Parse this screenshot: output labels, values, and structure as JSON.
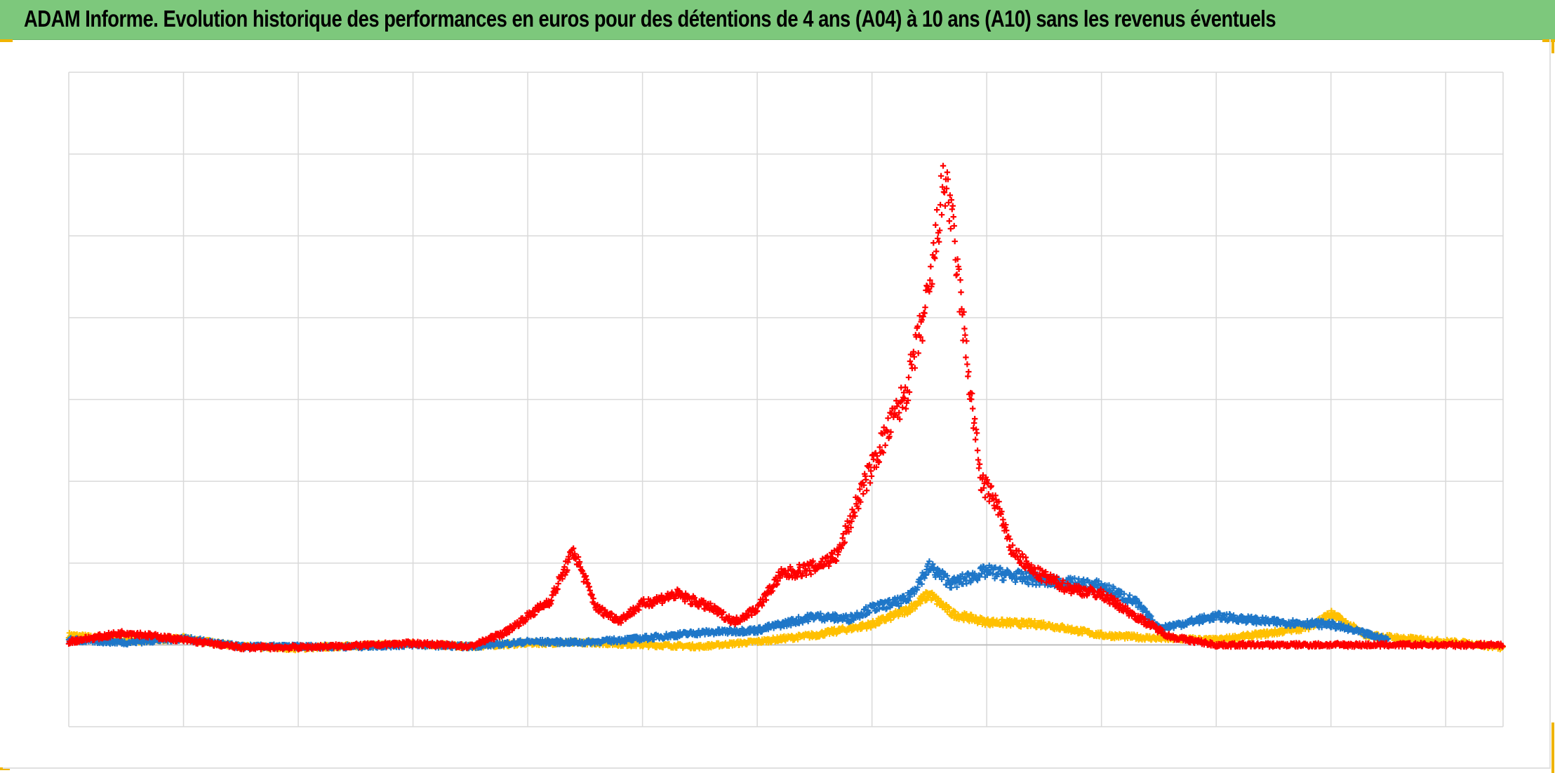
{
  "title": "ADAM Informe. Evolution historique des performances en euros pour des détentions de 4 ans (A04) à 10 ans (A10) sans les revenus éventuels",
  "colors": {
    "title_bar": "#7dc87c",
    "grid": "#d9d9d9",
    "zero_line": "#bfbfbf",
    "corner_marks": "#f0b400"
  },
  "chart_data": {
    "type": "scatter",
    "title": "ADAM Informe. Evolution historique des performances en euros pour des détentions de 4 ans (A04) à 10 ans (A10) sans les revenus éventuels",
    "xlabel": "",
    "ylabel": "",
    "xlim": [
      0,
      12.5
    ],
    "ylim": [
      -1,
      7
    ],
    "x_gridlines": 12,
    "y_gridlines": 8,
    "zero_line": 0,
    "grid": true,
    "tick_labels_visible": false,
    "legend": "none",
    "marker": "plus",
    "series": [
      {
        "color": "#ffc000",
        "values": [
          [
            0.0,
            0.12
          ],
          [
            0.5,
            0.05
          ],
          [
            1.0,
            0.08
          ],
          [
            1.5,
            -0.02
          ],
          [
            2.0,
            -0.04
          ],
          [
            2.5,
            -0.01
          ],
          [
            3.0,
            0.01
          ],
          [
            3.5,
            -0.02
          ],
          [
            4.0,
            0.02
          ],
          [
            4.5,
            0.03
          ],
          [
            5.0,
            0.0
          ],
          [
            5.5,
            -0.02
          ],
          [
            6.0,
            0.04
          ],
          [
            6.5,
            0.12
          ],
          [
            7.0,
            0.25
          ],
          [
            7.3,
            0.42
          ],
          [
            7.5,
            0.62
          ],
          [
            7.7,
            0.38
          ],
          [
            8.0,
            0.28
          ],
          [
            8.5,
            0.25
          ],
          [
            9.0,
            0.12
          ],
          [
            9.5,
            0.08
          ],
          [
            10.0,
            0.06
          ],
          [
            10.5,
            0.15
          ],
          [
            10.8,
            0.22
          ],
          [
            11.0,
            0.38
          ],
          [
            11.3,
            0.12
          ],
          [
            11.8,
            0.06
          ],
          [
            12.2,
            0.02
          ],
          [
            12.5,
            -0.04
          ]
        ]
      },
      {
        "color": "#1f77c8",
        "values": [
          [
            0.0,
            0.06
          ],
          [
            0.5,
            0.03
          ],
          [
            1.0,
            0.08
          ],
          [
            1.5,
            -0.02
          ],
          [
            2.0,
            -0.02
          ],
          [
            2.5,
            -0.02
          ],
          [
            3.0,
            0.0
          ],
          [
            3.5,
            -0.02
          ],
          [
            4.0,
            0.04
          ],
          [
            4.5,
            0.03
          ],
          [
            5.0,
            0.08
          ],
          [
            5.5,
            0.15
          ],
          [
            6.0,
            0.18
          ],
          [
            6.5,
            0.35
          ],
          [
            6.8,
            0.32
          ],
          [
            7.0,
            0.45
          ],
          [
            7.3,
            0.55
          ],
          [
            7.5,
            0.95
          ],
          [
            7.7,
            0.75
          ],
          [
            8.0,
            0.9
          ],
          [
            8.5,
            0.78
          ],
          [
            9.0,
            0.72
          ],
          [
            9.3,
            0.52
          ],
          [
            9.5,
            0.2
          ],
          [
            10.0,
            0.35
          ],
          [
            10.5,
            0.28
          ],
          [
            11.0,
            0.25
          ],
          [
            11.5,
            0.06
          ]
        ]
      },
      {
        "color": "#ff0000",
        "values": [
          [
            0.0,
            0.04
          ],
          [
            0.5,
            0.15
          ],
          [
            1.0,
            0.06
          ],
          [
            1.5,
            -0.03
          ],
          [
            2.0,
            -0.03
          ],
          [
            2.5,
            -0.01
          ],
          [
            3.0,
            0.02
          ],
          [
            3.5,
            -0.02
          ],
          [
            3.8,
            0.15
          ],
          [
            4.0,
            0.35
          ],
          [
            4.2,
            0.55
          ],
          [
            4.4,
            1.15
          ],
          [
            4.6,
            0.45
          ],
          [
            4.8,
            0.3
          ],
          [
            5.0,
            0.5
          ],
          [
            5.3,
            0.62
          ],
          [
            5.6,
            0.45
          ],
          [
            5.8,
            0.28
          ],
          [
            6.0,
            0.45
          ],
          [
            6.2,
            0.85
          ],
          [
            6.5,
            0.95
          ],
          [
            6.7,
            1.1
          ],
          [
            6.9,
            1.85
          ],
          [
            7.1,
            2.5
          ],
          [
            7.3,
            3.1
          ],
          [
            7.5,
            4.3
          ],
          [
            7.6,
            5.4
          ],
          [
            7.65,
            5.7
          ],
          [
            7.75,
            4.5
          ],
          [
            7.85,
            3.2
          ],
          [
            7.95,
            2.0
          ],
          [
            8.1,
            1.7
          ],
          [
            8.2,
            1.2
          ],
          [
            8.4,
            0.9
          ],
          [
            8.7,
            0.7
          ],
          [
            9.0,
            0.62
          ],
          [
            9.3,
            0.35
          ],
          [
            9.6,
            0.1
          ],
          [
            9.8,
            0.05
          ],
          [
            10.0,
            0.0
          ],
          [
            11.0,
            0.0
          ],
          [
            12.0,
            0.0
          ],
          [
            12.5,
            0.0
          ]
        ]
      }
    ]
  }
}
